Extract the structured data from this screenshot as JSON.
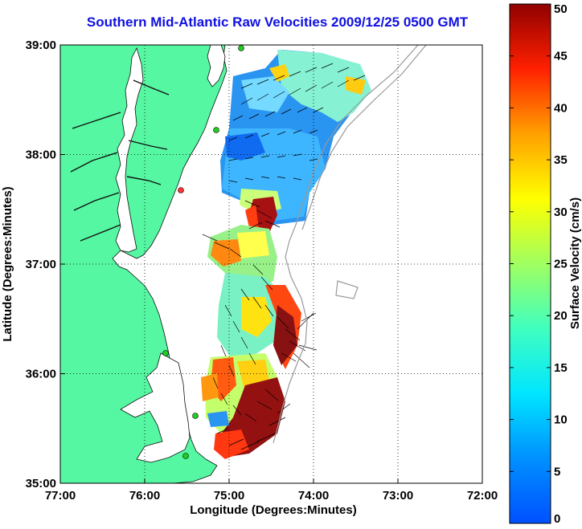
{
  "title": "Southern Mid-Atlantic Raw Velocities 2009/12/25 0500 GMT",
  "xlabel": "Longitude (Degrees:Minutes)",
  "ylabel": "Latitude (Degrees:Minutes)",
  "x_ticks": [
    "77:00",
    "76:00",
    "75:00",
    "74:00",
    "73:00",
    "72:00"
  ],
  "y_ticks": [
    "39:00",
    "38:00",
    "37:00",
    "36:00",
    "35:00"
  ],
  "colorbar": {
    "label": "Surface Velocity (cm/s)",
    "ticks": [
      "0",
      "5",
      "10",
      "15",
      "20",
      "25",
      "30",
      "35",
      "40",
      "45",
      "50"
    ],
    "range": [
      0,
      50
    ],
    "colormap": "jet"
  },
  "colors": {
    "land": "#55f7a2",
    "ocean": "#ffffff",
    "title": "#1010e0",
    "bathymetry": "#999999",
    "station": "#22cc22",
    "station_offline": "#ff3333"
  },
  "grid": true,
  "stations": [
    {
      "status": "online"
    },
    {
      "status": "online"
    },
    {
      "status": "offline"
    },
    {
      "status": "online"
    },
    {
      "status": "online"
    },
    {
      "status": "online"
    }
  ],
  "chart_data": {
    "type": "vector-field",
    "xlim": [
      -77,
      -72
    ],
    "ylim": [
      35,
      39
    ],
    "z_range": [
      0,
      50
    ],
    "zlabel": "Surface Velocity (cm/s)"
  }
}
